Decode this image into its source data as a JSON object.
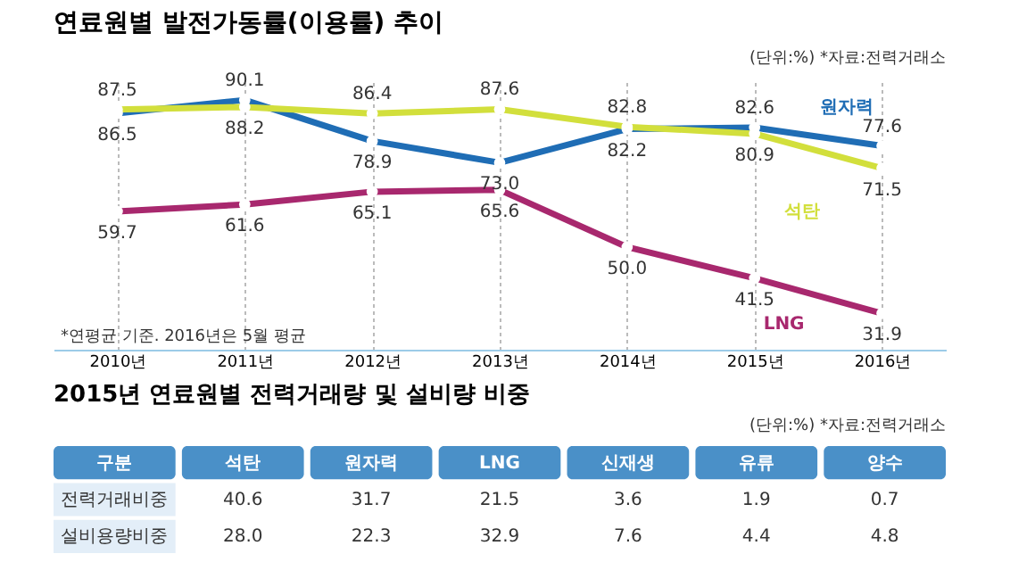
{
  "chart_data": [
    {
      "type": "line",
      "title": "연료원별 발전가동률(이용률) 추이",
      "annotations": [
        "(단위:%)",
        "*자료:전력거래소",
        "*연평균 기준. 2016년은 5월 평균"
      ],
      "categories": [
        "2010년",
        "2011년",
        "2012년",
        "2013년",
        "2014년",
        "2015년",
        "2016년"
      ],
      "series": [
        {
          "name": "원자력",
          "color": "#1f6db5",
          "values": [
            86.5,
            90.1,
            78.9,
            73.0,
            82.2,
            82.6,
            77.6
          ],
          "value_labels": [
            "86.5",
            "90.1",
            "78.9",
            "73.0",
            "82.2",
            "82.6",
            "77.6"
          ]
        },
        {
          "name": "석탄",
          "color": "#d2df3c",
          "values": [
            87.5,
            88.2,
            86.4,
            87.6,
            82.8,
            80.9,
            71.5
          ],
          "value_labels": [
            "87.5",
            "88.2",
            "86.4",
            "87.6",
            "82.8",
            "80.9",
            "71.5"
          ]
        },
        {
          "name": "LNG",
          "color": "#a8286e",
          "values": [
            59.7,
            61.6,
            65.1,
            65.6,
            50.0,
            41.5,
            31.9
          ],
          "value_labels": [
            "59.7",
            "61.6",
            "65.1",
            "65.6",
            "50.0",
            "41.5",
            "31.9"
          ]
        }
      ],
      "ylim": [
        22,
        95
      ],
      "tick_labels": "x",
      "grid": "x",
      "legend": false,
      "marker": "circle",
      "line_style": "solid"
    },
    {
      "type": "other",
      "title": "2015년 연료원별 전력거래량 및 설비량 비중",
      "annotations": [
        "(단위:%)",
        "*자료:전력거래소"
      ],
      "legend_title": "구분",
      "categories": [
        "석탄",
        "원자력",
        "LNG",
        "신재생",
        "유류",
        "양수"
      ],
      "series": [
        {
          "name": "전력거래비중",
          "values": [
            40.6,
            31.7,
            21.5,
            3.6,
            1.9,
            0.7
          ],
          "value_labels": [
            "40.6",
            "31.7",
            "21.5",
            "3.6",
            "1.9",
            "0.7"
          ]
        },
        {
          "name": "설비용량비중",
          "values": [
            28.0,
            22.3,
            32.9,
            7.6,
            4.4,
            4.8
          ],
          "value_labels": [
            "28.0",
            "22.3",
            "32.9",
            "7.6",
            "4.4",
            "4.8"
          ]
        }
      ]
    }
  ]
}
